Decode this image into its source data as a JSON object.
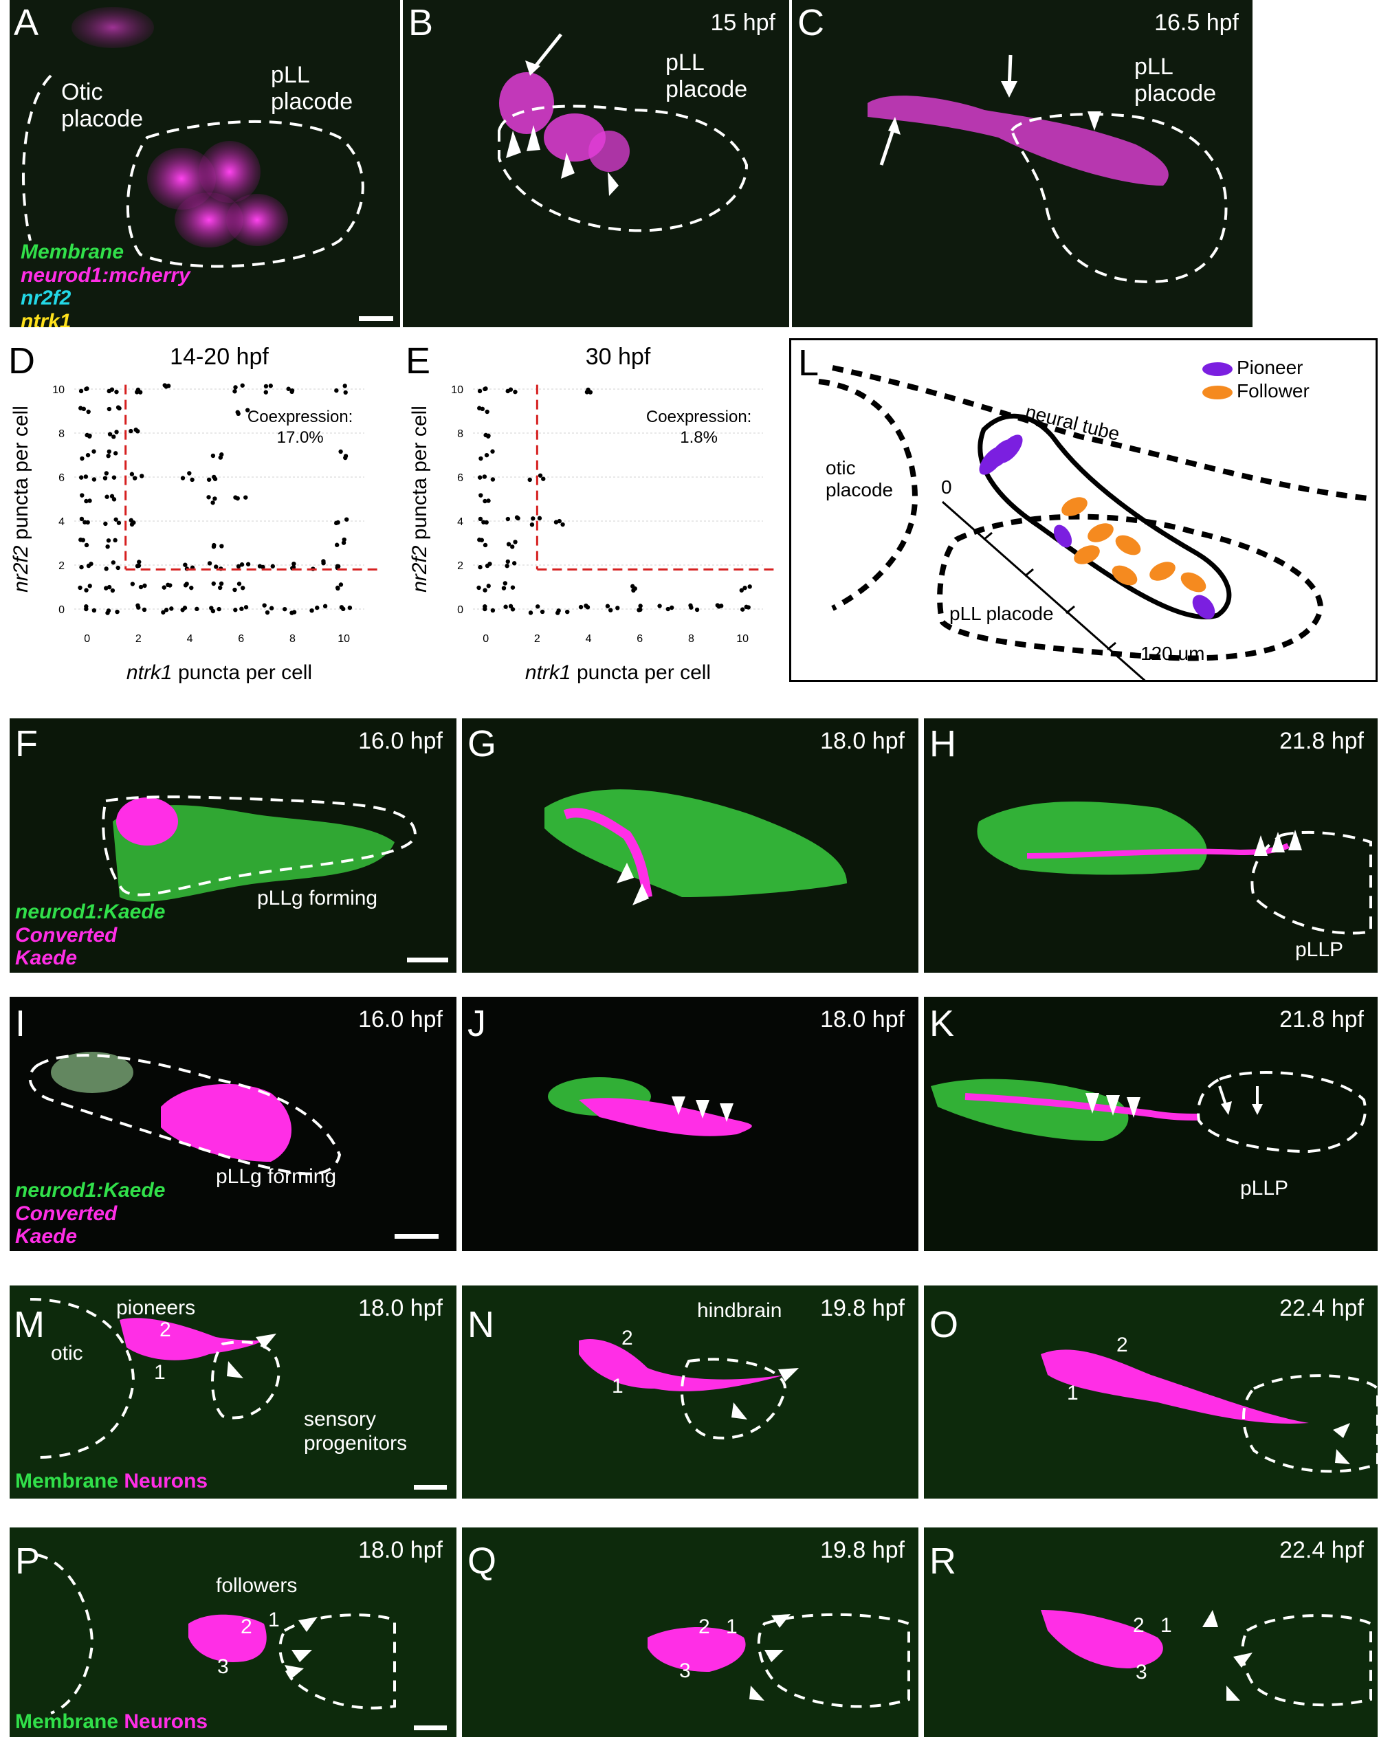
{
  "colors": {
    "membrane": "#31e04a",
    "neurons": "#ff2ee6",
    "nr2f2": "#23d8e6",
    "ntrk1": "#ffe21c",
    "pioneer": "#7b1fe0",
    "follower": "#f58a1f",
    "threshold": "#d62020"
  },
  "panels": {
    "A": {
      "letter": "A",
      "otic": "Otic\nplacode",
      "pll": "pLL\nplacode",
      "legend": [
        "Membrane",
        "neurod1:mcherry",
        "nr2f2",
        "ntrk1"
      ]
    },
    "B": {
      "letter": "B",
      "time": "15 hpf",
      "pll": "pLL\nplacode"
    },
    "C": {
      "letter": "C",
      "time": "16.5 hpf",
      "pll": "pLL\nplacode"
    },
    "F": {
      "letter": "F",
      "time": "16.0 hpf",
      "region": "pLLg forming",
      "legend": [
        "neurod1:Kaede",
        "Converted",
        "Kaede"
      ]
    },
    "G": {
      "letter": "G",
      "time": "18.0 hpf"
    },
    "H": {
      "letter": "H",
      "time": "21.8 hpf",
      "region": "pLLP"
    },
    "I": {
      "letter": "I",
      "time": "16.0 hpf",
      "region": "pLLg forming",
      "legend": [
        "neurod1:Kaede",
        "Converted",
        "Kaede"
      ]
    },
    "J": {
      "letter": "J",
      "time": "18.0 hpf"
    },
    "K": {
      "letter": "K",
      "time": "21.8 hpf",
      "region": "pLLP"
    },
    "M": {
      "letter": "M",
      "time": "18.0 hpf",
      "otic": "otic",
      "pioneers": "pioneers",
      "sensory": "sensory\nprogenitors",
      "n1": "1",
      "n2": "2",
      "legend_membrane": "Membrane",
      "legend_neurons": "Neurons"
    },
    "N": {
      "letter": "N",
      "time": "19.8 hpf",
      "hindbrain": "hindbrain",
      "n1": "1",
      "n2": "2"
    },
    "O": {
      "letter": "O",
      "time": "22.4 hpf",
      "n1": "1",
      "n2": "2"
    },
    "P": {
      "letter": "P",
      "time": "18.0 hpf",
      "followers": "followers",
      "n1": "1",
      "n2": "2",
      "n3": "3",
      "legend_membrane": "Membrane",
      "legend_neurons": "Neurons"
    },
    "Q": {
      "letter": "Q",
      "time": "19.8 hpf",
      "n1": "1",
      "n2": "2",
      "n3": "3"
    },
    "R": {
      "letter": "R",
      "time": "22.4 hpf",
      "n1": "1",
      "n2": "2",
      "n3": "3"
    }
  },
  "schematic": {
    "letter": "L",
    "legend_pioneer": "Pioneer",
    "legend_follower": "Follower",
    "neural_tube": "neural tube",
    "otic": "otic\nplacode",
    "pll": "pLL placode",
    "axis_start": "0",
    "axis_end": "120 um"
  },
  "chart_data": [
    {
      "type": "scatter",
      "panel": "D",
      "title": "14-20 hpf",
      "xlabel": "ntrk1 puncta per cell",
      "ylabel": "nr2f2 puncta per cell",
      "xticks": [
        0,
        2,
        4,
        6,
        8,
        10
      ],
      "yticks": [
        0,
        2,
        4,
        6,
        8,
        10
      ],
      "xlim": [
        -0.5,
        10.8
      ],
      "ylim": [
        -0.5,
        10.5
      ],
      "annotation": "Coexpression:\n17.0%",
      "threshold_x": 1.5,
      "threshold_y": 1.8,
      "points": [
        [
          0,
          10
        ],
        [
          0,
          9
        ],
        [
          0,
          8
        ],
        [
          0,
          7
        ],
        [
          0,
          6
        ],
        [
          0,
          5
        ],
        [
          0,
          4
        ],
        [
          0,
          3
        ],
        [
          0,
          2
        ],
        [
          0,
          1
        ],
        [
          0,
          0
        ],
        [
          1,
          10
        ],
        [
          1,
          9
        ],
        [
          1,
          8
        ],
        [
          1,
          7
        ],
        [
          1,
          6
        ],
        [
          1,
          5
        ],
        [
          1,
          4
        ],
        [
          1,
          3
        ],
        [
          1,
          2
        ],
        [
          1,
          1
        ],
        [
          1,
          0
        ],
        [
          2,
          10
        ],
        [
          2,
          8
        ],
        [
          2,
          6
        ],
        [
          2,
          4
        ],
        [
          2,
          2
        ],
        [
          2,
          1
        ],
        [
          2,
          0
        ],
        [
          3,
          10
        ],
        [
          3,
          0
        ],
        [
          3,
          1
        ],
        [
          4,
          6
        ],
        [
          4,
          2
        ],
        [
          4,
          0
        ],
        [
          4,
          1
        ],
        [
          5,
          7
        ],
        [
          5,
          6
        ],
        [
          5,
          5
        ],
        [
          5,
          3
        ],
        [
          5,
          2
        ],
        [
          5,
          0
        ],
        [
          5,
          1
        ],
        [
          6,
          10
        ],
        [
          6,
          9
        ],
        [
          6,
          5
        ],
        [
          6,
          2
        ],
        [
          6,
          0
        ],
        [
          6,
          1
        ],
        [
          7,
          10
        ],
        [
          7,
          2
        ],
        [
          7,
          0
        ],
        [
          8,
          10
        ],
        [
          8,
          2
        ],
        [
          8,
          0
        ],
        [
          9,
          0
        ],
        [
          9,
          2
        ],
        [
          10,
          10
        ],
        [
          10,
          7
        ],
        [
          10,
          4
        ],
        [
          10,
          3
        ],
        [
          10,
          2
        ],
        [
          10,
          1
        ],
        [
          10,
          0
        ]
      ]
    },
    {
      "type": "scatter",
      "panel": "E",
      "title": "30 hpf",
      "xlabel": "ntrk1 puncta per cell",
      "ylabel": "nr2f2 puncta per cell",
      "xticks": [
        0,
        2,
        4,
        6,
        8,
        10
      ],
      "yticks": [
        0,
        2,
        4,
        6,
        8,
        10
      ],
      "xlim": [
        -0.5,
        10.8
      ],
      "ylim": [
        -0.5,
        10.5
      ],
      "annotation": "Coexpression:\n1.8%",
      "threshold_x": 2.0,
      "threshold_y": 1.8,
      "points": [
        [
          0,
          10
        ],
        [
          0,
          9
        ],
        [
          0,
          8
        ],
        [
          0,
          7
        ],
        [
          0,
          6
        ],
        [
          0,
          5
        ],
        [
          0,
          4
        ],
        [
          0,
          3
        ],
        [
          0,
          2
        ],
        [
          0,
          1
        ],
        [
          0,
          0
        ],
        [
          1,
          10
        ],
        [
          1,
          4
        ],
        [
          1,
          3
        ],
        [
          1,
          2
        ],
        [
          1,
          1
        ],
        [
          1,
          0
        ],
        [
          2,
          6
        ],
        [
          2,
          4
        ],
        [
          2,
          0
        ],
        [
          3,
          4
        ],
        [
          3,
          0
        ],
        [
          4,
          10
        ],
        [
          4,
          0
        ],
        [
          5,
          0
        ],
        [
          6,
          1
        ],
        [
          6,
          0
        ],
        [
          7,
          0
        ],
        [
          8,
          0
        ],
        [
          9,
          0
        ],
        [
          10,
          1
        ],
        [
          10,
          0
        ]
      ]
    }
  ]
}
